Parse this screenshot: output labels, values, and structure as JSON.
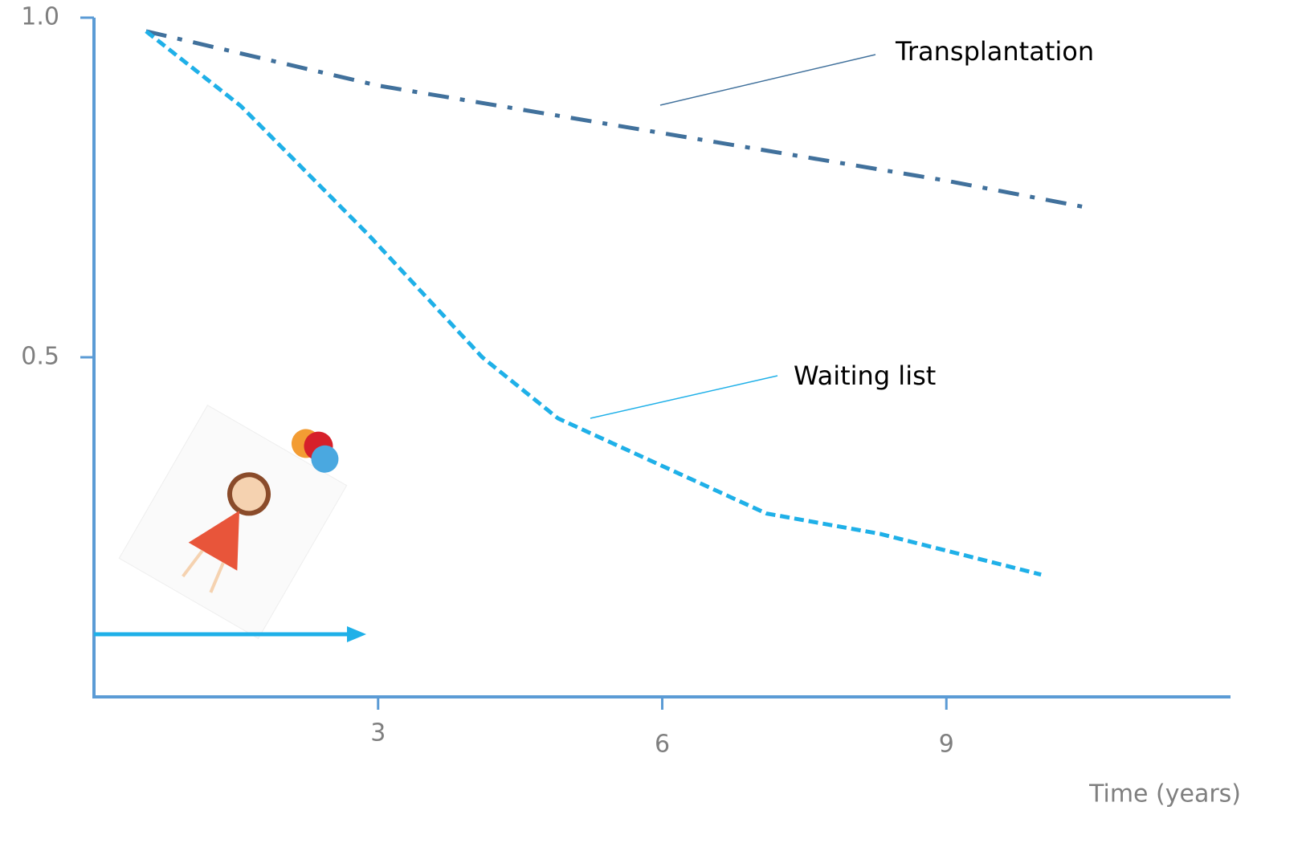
{
  "chart_data": {
    "type": "line",
    "x_label": "Time (years)",
    "xlim": [
      0,
      12
    ],
    "xticks": [
      3,
      6,
      9
    ],
    "ylim": [
      0,
      1
    ],
    "yticks": [
      0.5,
      {
        "value": 1,
        "label": "1.0"
      }
    ],
    "series": [
      {
        "name": "Transplantation",
        "color": "#41719c",
        "dash": "dash-dot",
        "x": [
          0.55,
          3,
          6,
          9,
          10.5
        ],
        "values": [
          0.98,
          0.9,
          0.83,
          0.76,
          0.72
        ]
      },
      {
        "name": "Waiting list",
        "color": "#1fb0e8",
        "dash": "dashed",
        "x": [
          0.55,
          1.55,
          2.9,
          4.1,
          4.9,
          6,
          7.1,
          8.3,
          10
        ],
        "values": [
          0.98,
          0.87,
          0.68,
          0.5,
          0.41,
          0.34,
          0.27,
          0.24,
          0.18
        ]
      }
    ]
  }
}
